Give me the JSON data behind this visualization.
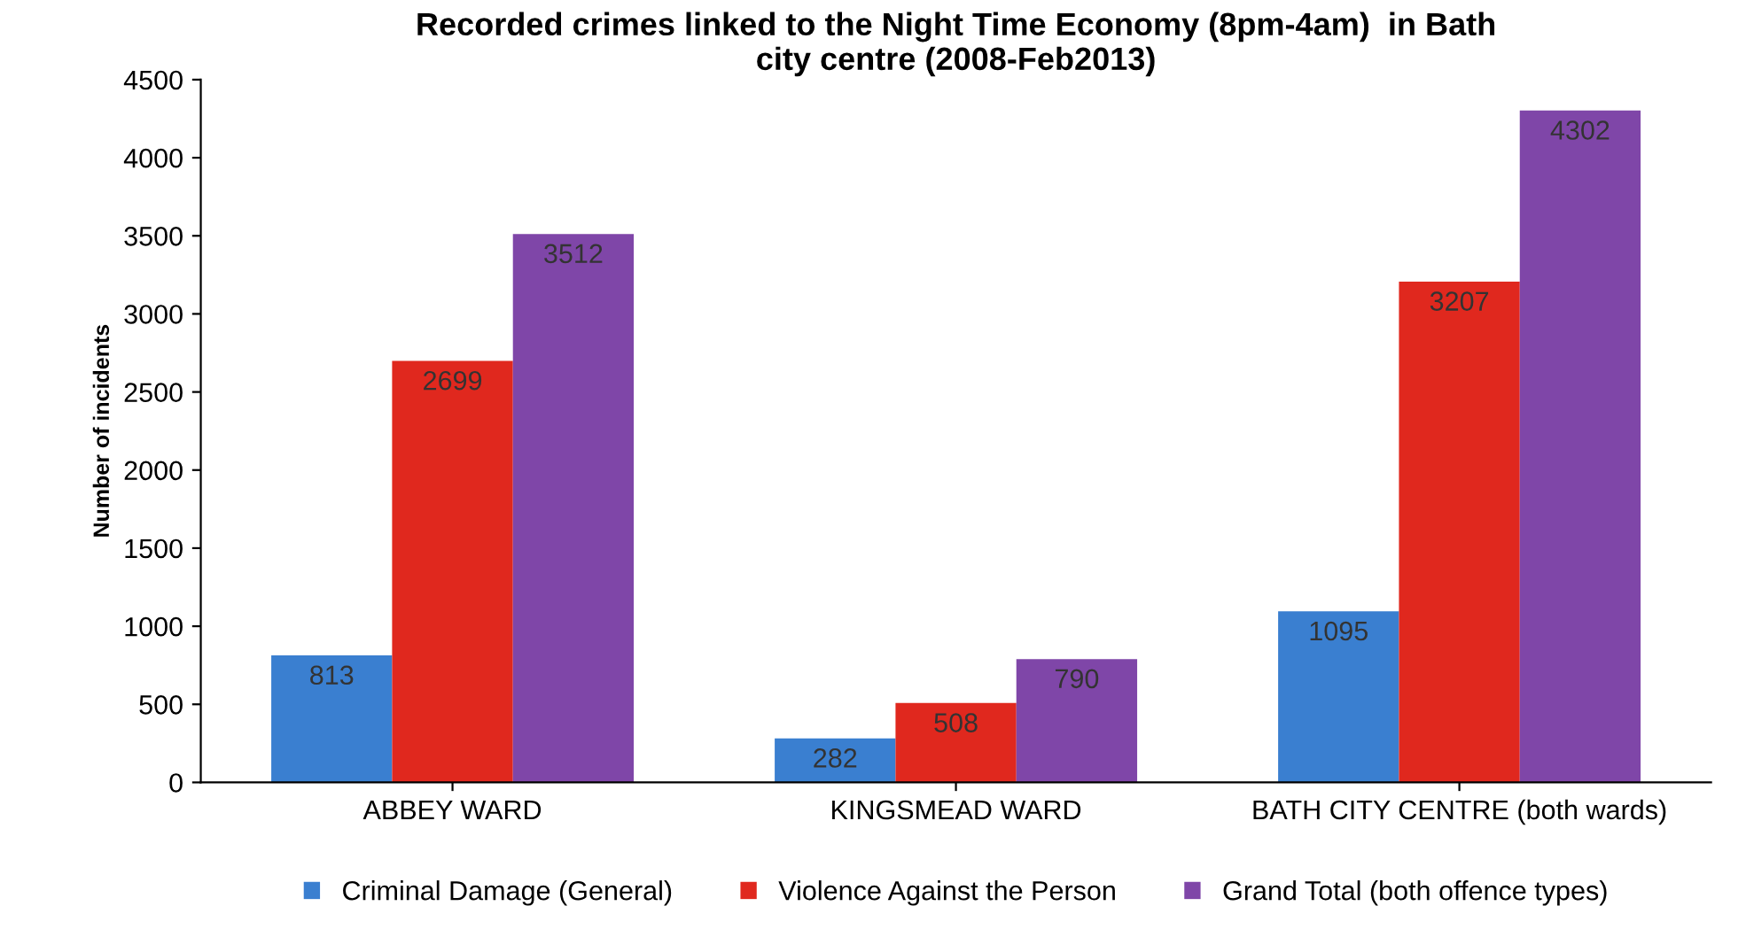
{
  "chart_data": {
    "type": "bar",
    "title": "Recorded crimes linked to the Night Time Economy (8pm-4am)  in Bath\ncity centre (2008-Feb2013)",
    "ylabel": "Number of incidents",
    "categories": [
      "ABBEY WARD",
      "KINGSMEAD WARD",
      "BATH CITY CENTRE (both wards)"
    ],
    "series": [
      {
        "name": "Criminal Damage (General)",
        "color": "#3a7fd0",
        "values": [
          813,
          282,
          1095
        ]
      },
      {
        "name": "Violence Against the Person",
        "color": "#e0281e",
        "values": [
          2699,
          508,
          3207
        ]
      },
      {
        "name": "Grand Total (both offence types)",
        "color": "#7f46a8",
        "values": [
          3512,
          790,
          4302
        ]
      }
    ],
    "ylim": [
      0,
      4500
    ],
    "yticks": [
      0,
      500,
      1000,
      1500,
      2000,
      2500,
      3000,
      3500,
      4000,
      4500
    ],
    "data_labels": true,
    "grid": false,
    "legend": "bottom"
  }
}
